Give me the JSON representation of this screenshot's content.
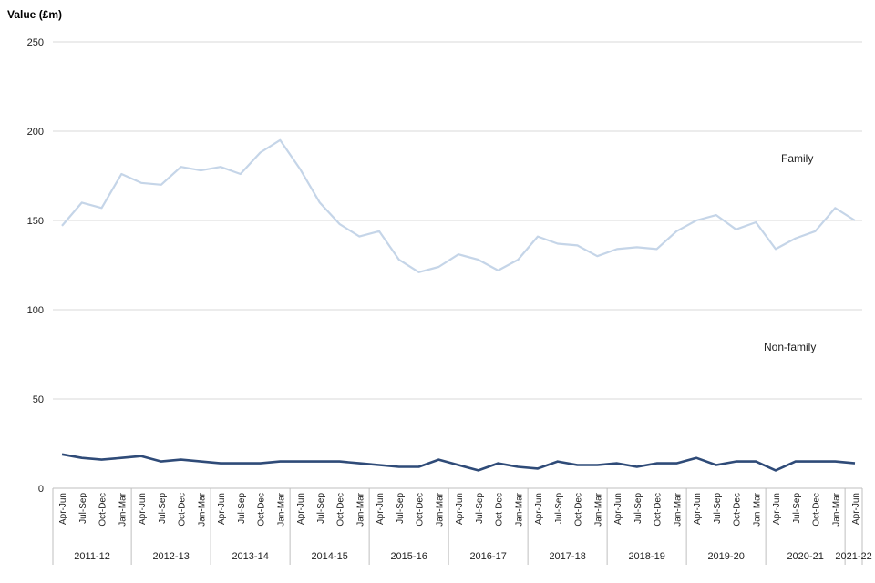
{
  "chart_data": {
    "type": "line",
    "ylabel": "Value (£m)",
    "ylim": [
      0,
      250
    ],
    "yticks": [
      0,
      50,
      100,
      150,
      200,
      250
    ],
    "grid": true,
    "quarters": [
      "Apr-Jun",
      "Jul-Sep",
      "Oct-Dec",
      "Jan-Mar",
      "Apr-Jun",
      "Jul-Sep",
      "Oct-Dec",
      "Jan-Mar",
      "Apr-Jun",
      "Jul-Sep",
      "Oct-Dec",
      "Jan-Mar",
      "Apr-Jun",
      "Jul-Sep",
      "Oct-Dec",
      "Jan-Mar",
      "Apr-Jun",
      "Jul-Sep",
      "Oct-Dec",
      "Jan-Mar",
      "Apr-Jun",
      "Jul-Sep",
      "Oct-Dec",
      "Jan-Mar",
      "Apr-Jun",
      "Jul-Sep",
      "Oct-Dec",
      "Jan-Mar",
      "Apr-Jun",
      "Jul-Sep",
      "Oct-Dec",
      "Jan-Mar",
      "Apr-Jun",
      "Jul-Sep",
      "Oct-Dec",
      "Jan-Mar",
      "Apr-Jun",
      "Jul-Sep",
      "Oct-Dec",
      "Jan-Mar",
      "Apr-Jun"
    ],
    "years": [
      "2011-12",
      "2012-13",
      "2013-14",
      "2014-15",
      "2015-16",
      "2016-17",
      "2017-18",
      "2018-19",
      "2019-20",
      "2020-21",
      "2021-22"
    ],
    "series": [
      {
        "name": "Family",
        "color": "#c5d5e8",
        "values": [
          147,
          160,
          157,
          176,
          171,
          170,
          180,
          178,
          180,
          176,
          188,
          195,
          179,
          160,
          148,
          141,
          144,
          128,
          121,
          124,
          131,
          128,
          122,
          128,
          141,
          137,
          136,
          130,
          134,
          135,
          134,
          144,
          150,
          153,
          145,
          149,
          134,
          140,
          144,
          157,
          150
        ]
      },
      {
        "name": "Non-family",
        "color": "#2f4b78",
        "values": [
          19,
          17,
          16,
          17,
          18,
          15,
          16,
          15,
          14,
          14,
          14,
          15,
          15,
          15,
          15,
          14,
          13,
          12,
          12,
          16,
          13,
          10,
          14,
          12,
          11,
          15,
          13,
          13,
          14,
          12,
          14,
          14,
          17,
          13,
          15,
          15,
          10,
          15,
          15,
          15,
          14
        ]
      }
    ]
  }
}
